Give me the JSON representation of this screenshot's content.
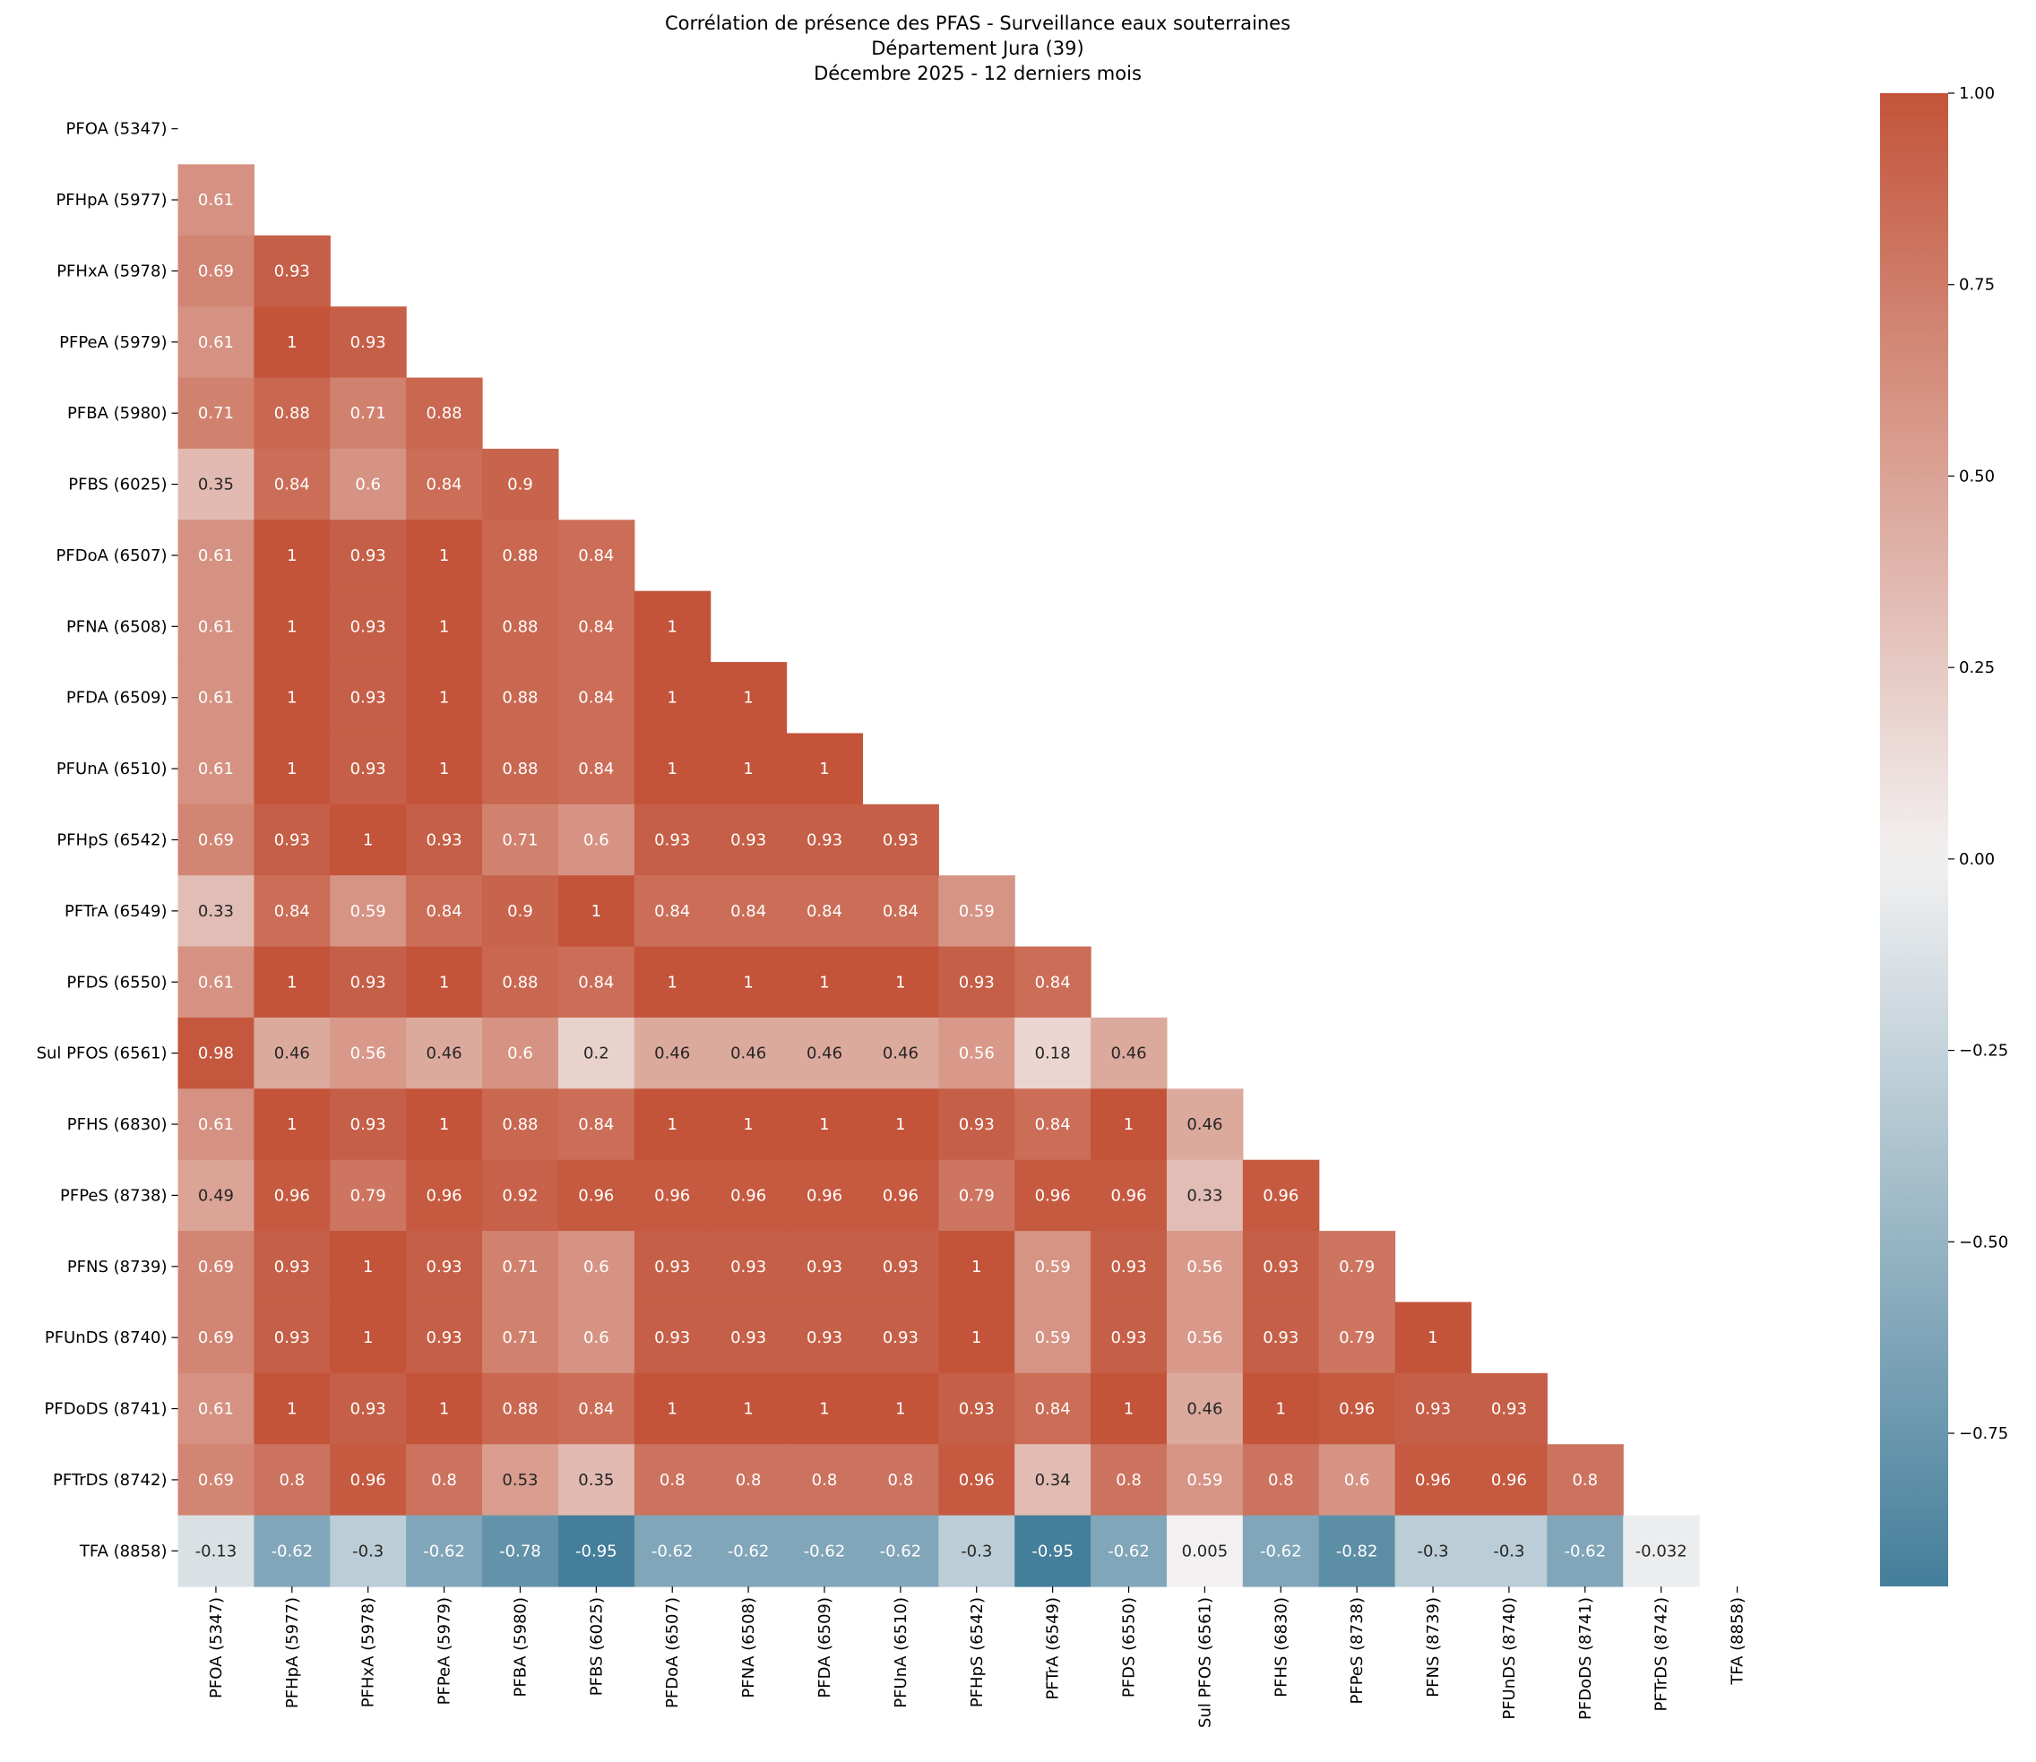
{
  "chart_data": {
    "type": "heatmap",
    "title": [
      "Corrélation de présence des PFAS - Surveillance eaux souterraines",
      "Département Jura (39)",
      "Décembre 2025 - 12 derniers mois"
    ],
    "xlabel": "",
    "ylabel": "",
    "mask": "upper-triangle-including-diagonal",
    "labels": [
      "PFOA (5347)",
      "PFHpA (5977)",
      "PFHxA (5978)",
      "PFPeA (5979)",
      "PFBA (5980)",
      "PFBS (6025)",
      "PFDoA (6507)",
      "PFNA (6508)",
      "PFDA (6509)",
      "PFUnA (6510)",
      "PFHpS (6542)",
      "PFTrA (6549)",
      "PFDS (6550)",
      "Sul PFOS (6561)",
      "PFHS (6830)",
      "PFPeS (8738)",
      "PFNS (8739)",
      "PFUnDS (8740)",
      "PFDoDS (8741)",
      "PFTrDS (8742)",
      "TFA (8858)"
    ],
    "lower_triangle": [
      [],
      [
        0.61
      ],
      [
        0.69,
        0.93
      ],
      [
        0.61,
        1,
        0.93
      ],
      [
        0.71,
        0.88,
        0.71,
        0.88
      ],
      [
        0.35,
        0.84,
        0.6,
        0.84,
        0.9
      ],
      [
        0.61,
        1,
        0.93,
        1,
        0.88,
        0.84
      ],
      [
        0.61,
        1,
        0.93,
        1,
        0.88,
        0.84,
        1
      ],
      [
        0.61,
        1,
        0.93,
        1,
        0.88,
        0.84,
        1,
        1
      ],
      [
        0.61,
        1,
        0.93,
        1,
        0.88,
        0.84,
        1,
        1,
        1
      ],
      [
        0.69,
        0.93,
        1,
        0.93,
        0.71,
        0.6,
        0.93,
        0.93,
        0.93,
        0.93
      ],
      [
        0.33,
        0.84,
        0.59,
        0.84,
        0.9,
        1,
        0.84,
        0.84,
        0.84,
        0.84,
        0.59
      ],
      [
        0.61,
        1,
        0.93,
        1,
        0.88,
        0.84,
        1,
        1,
        1,
        1,
        0.93,
        0.84
      ],
      [
        0.98,
        0.46,
        0.56,
        0.46,
        0.6,
        0.2,
        0.46,
        0.46,
        0.46,
        0.46,
        0.56,
        0.18,
        0.46
      ],
      [
        0.61,
        1,
        0.93,
        1,
        0.88,
        0.84,
        1,
        1,
        1,
        1,
        0.93,
        0.84,
        1,
        0.46
      ],
      [
        0.49,
        0.96,
        0.79,
        0.96,
        0.92,
        0.96,
        0.96,
        0.96,
        0.96,
        0.96,
        0.79,
        0.96,
        0.96,
        0.33,
        0.96
      ],
      [
        0.69,
        0.93,
        1,
        0.93,
        0.71,
        0.6,
        0.93,
        0.93,
        0.93,
        0.93,
        1,
        0.59,
        0.93,
        0.56,
        0.93,
        0.79
      ],
      [
        0.69,
        0.93,
        1,
        0.93,
        0.71,
        0.6,
        0.93,
        0.93,
        0.93,
        0.93,
        1,
        0.59,
        0.93,
        0.56,
        0.93,
        0.79,
        1
      ],
      [
        0.61,
        1,
        0.93,
        1,
        0.88,
        0.84,
        1,
        1,
        1,
        1,
        0.93,
        0.84,
        1,
        0.46,
        1,
        0.96,
        0.93,
        0.93
      ],
      [
        0.69,
        0.8,
        0.96,
        0.8,
        0.53,
        0.35,
        0.8,
        0.8,
        0.8,
        0.8,
        0.96,
        0.34,
        0.8,
        0.59,
        0.8,
        0.6,
        0.96,
        0.96,
        0.8
      ],
      [
        -0.13,
        -0.62,
        -0.3,
        -0.62,
        -0.78,
        -0.95,
        -0.62,
        -0.62,
        -0.62,
        -0.62,
        -0.3,
        -0.95,
        -0.62,
        0.005,
        -0.62,
        -0.82,
        -0.3,
        -0.3,
        -0.62,
        -0.032
      ]
    ],
    "colorbar": {
      "vmin": -0.95,
      "vmax": 1.0,
      "ticks": [
        1.0,
        0.75,
        0.5,
        0.25,
        0.0,
        -0.25,
        -0.5,
        -0.75
      ],
      "tick_labels": [
        "1.00",
        "0.75",
        "0.50",
        "0.25",
        "0.00",
        "−0.25",
        "−0.50",
        "−0.75"
      ]
    },
    "colors": {
      "negative": "#3b7896",
      "center": "#f2f1f1",
      "positive": "#c3543a"
    }
  }
}
